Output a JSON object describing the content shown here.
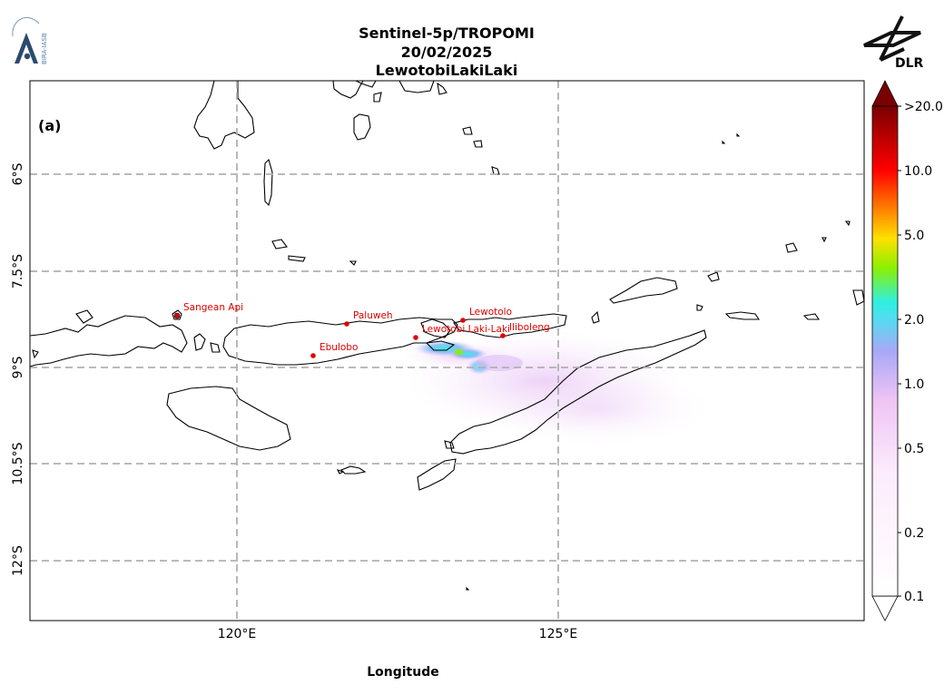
{
  "header": {
    "title_line1": "Sentinel-5p/TROPOMI",
    "title_line2": "20/02/2025",
    "title_line3": "LewotobiLakiLaki",
    "logo_left_text": "BIRA-IASB",
    "logo_right_text": "DLR"
  },
  "map": {
    "panel_label": "(a)",
    "x_axis_label": "Longitude",
    "x_ticks": [
      "120°E",
      "125°E"
    ],
    "y_ticks": [
      "6°S",
      "7.5°S",
      "9°S",
      "10.5°S",
      "12°S"
    ],
    "gridlines": "dashed grey"
  },
  "volcanoes": [
    {
      "name": "Sangean Api"
    },
    {
      "name": "Paluweh"
    },
    {
      "name": "Ebulobo"
    },
    {
      "name": "Lewotolo"
    },
    {
      "name": "Lewotobi Laki-Laki"
    },
    {
      "name": "Iliboleng"
    }
  ],
  "colorbar": {
    "ticks": [
      ">20.0",
      "10.0",
      "5.0",
      "2.0",
      "1.0",
      "0.5",
      "0.2",
      "0.1"
    ],
    "extend": "max"
  },
  "colors": {
    "volcano_marker": "#e00000",
    "coastline": "#000000",
    "grid": "#b0b0b0"
  }
}
